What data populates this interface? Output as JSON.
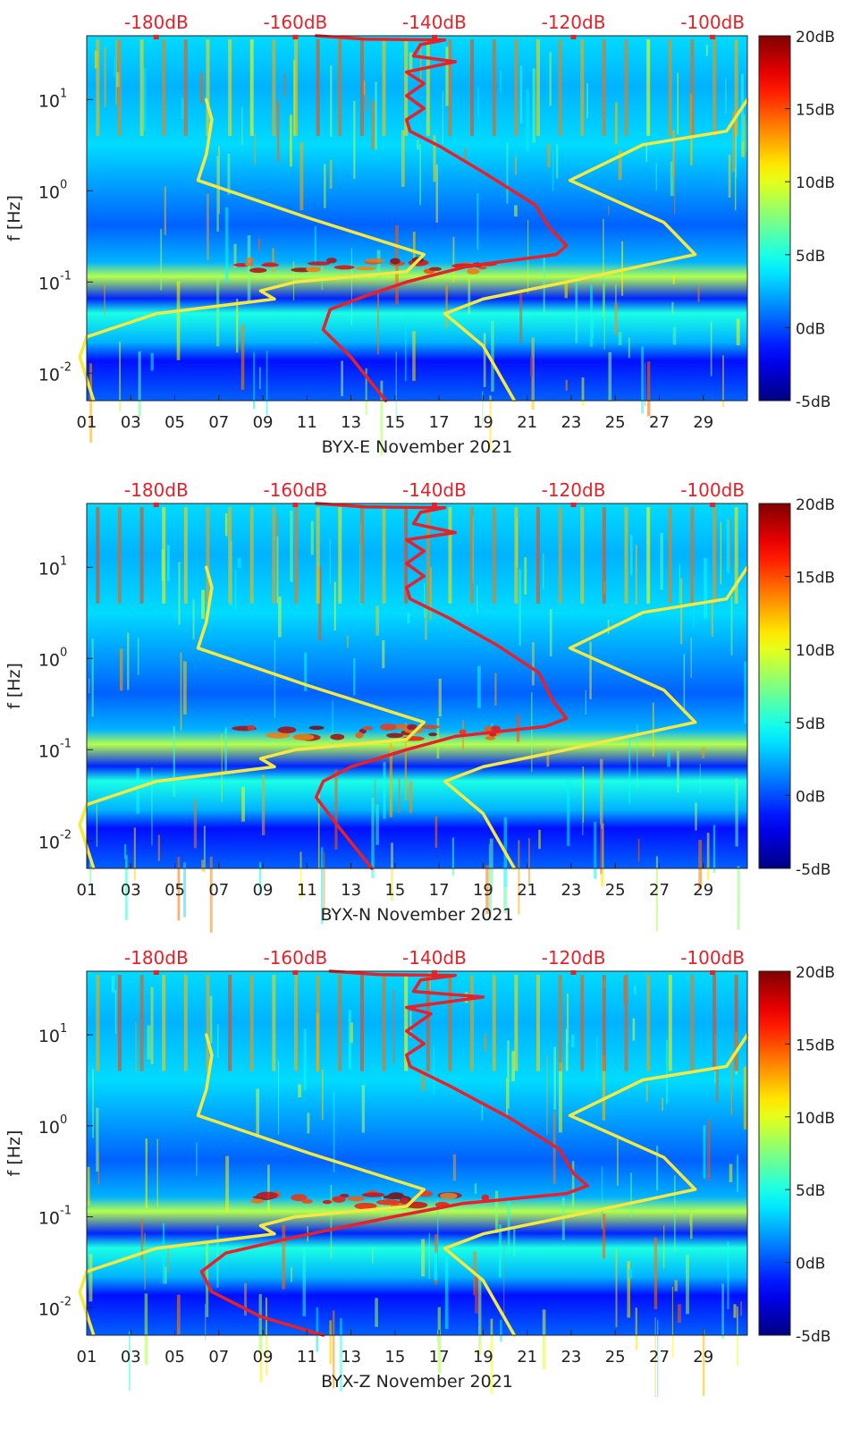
{
  "chart_data": [
    {
      "type": "heatmap",
      "station": "BYX-E",
      "xlabel": "BYX-E November 2021",
      "ylabel": "f [Hz]",
      "x_ticks": [
        "01",
        "03",
        "05",
        "07",
        "09",
        "11",
        "13",
        "15",
        "17",
        "19",
        "21",
        "23",
        "25",
        "27",
        "29"
      ],
      "xlim_days": [
        1,
        31
      ],
      "y_scale": "log",
      "ylim_hz": [
        0.005,
        50
      ],
      "y_ticks": [
        {
          "value": 0.01,
          "label": "10",
          "exp": "-2"
        },
        {
          "value": 0.1,
          "label": "10",
          "exp": "-1"
        },
        {
          "value": 1,
          "label": "10",
          "exp": "0"
        },
        {
          "value": 10,
          "label": "10",
          "exp": "1"
        }
      ],
      "colorbar": {
        "ticks": [
          "20dB",
          "15dB",
          "10dB",
          "5dB",
          "0dB",
          "-5dB"
        ],
        "range_db": [
          -5,
          20
        ],
        "colormap": "jet"
      },
      "top_axis": {
        "ticks": [
          "-180dB",
          "-160dB",
          "-140dB",
          "-120dB",
          "-100dB"
        ],
        "range_db": [
          -190,
          -95
        ],
        "color": "#e8202a"
      },
      "grid": false,
      "series": [
        {
          "color": "#f4e842",
          "points": [
            {
              "db": -172.8,
              "hz": 10
            },
            {
              "db": -172.0,
              "hz": 6.0
            },
            {
              "db": -172.8,
              "hz": 2.5
            },
            {
              "db": -174.0,
              "hz": 1.3
            },
            {
              "db": -158.0,
              "hz": 0.5
            },
            {
              "db": -141.5,
              "hz": 0.2
            },
            {
              "db": -144.0,
              "hz": 0.13
            },
            {
              "db": -160.0,
              "hz": 0.1
            },
            {
              "db": -165.0,
              "hz": 0.08
            },
            {
              "db": -163.0,
              "hz": 0.065
            },
            {
              "db": -180.0,
              "hz": 0.045
            },
            {
              "db": -190.0,
              "hz": 0.025
            },
            {
              "db": -191.0,
              "hz": 0.015
            },
            {
              "db": -189.0,
              "hz": 0.005
            }
          ]
        },
        {
          "color": "#f4e842",
          "points": [
            {
              "db": -95.0,
              "hz": 10
            },
            {
              "db": -98.0,
              "hz": 4.5
            },
            {
              "db": -110.0,
              "hz": 3.2
            },
            {
              "db": -120.5,
              "hz": 1.3
            },
            {
              "db": -107.0,
              "hz": 0.45
            },
            {
              "db": -102.5,
              "hz": 0.2
            },
            {
              "db": -121.0,
              "hz": 0.1
            },
            {
              "db": -133.0,
              "hz": 0.065
            },
            {
              "db": -138.5,
              "hz": 0.045
            },
            {
              "db": -133.0,
              "hz": 0.02
            },
            {
              "db": -128.5,
              "hz": 0.005
            }
          ]
        },
        {
          "color": "#e8202a",
          "points": [
            {
              "db": -157.0,
              "hz": 50
            },
            {
              "db": -150.0,
              "hz": 46
            },
            {
              "db": -138.5,
              "hz": 45
            },
            {
              "db": -142.0,
              "hz": 40
            },
            {
              "db": -143.0,
              "hz": 30
            },
            {
              "db": -137.0,
              "hz": 26
            },
            {
              "db": -144.0,
              "hz": 20
            },
            {
              "db": -141.5,
              "hz": 15
            },
            {
              "db": -144.0,
              "hz": 11
            },
            {
              "db": -141.5,
              "hz": 8
            },
            {
              "db": -144.0,
              "hz": 6
            },
            {
              "db": -143.5,
              "hz": 4.5
            },
            {
              "db": -139.0,
              "hz": 3.0
            },
            {
              "db": -133.0,
              "hz": 1.6
            },
            {
              "db": -125.5,
              "hz": 0.7
            },
            {
              "db": -123.5,
              "hz": 0.4
            },
            {
              "db": -121.0,
              "hz": 0.25
            },
            {
              "db": -122.5,
              "hz": 0.2
            },
            {
              "db": -135.0,
              "hz": 0.15
            },
            {
              "db": -144.0,
              "hz": 0.1
            },
            {
              "db": -150.0,
              "hz": 0.07
            },
            {
              "db": -155.0,
              "hz": 0.05
            },
            {
              "db": -156.0,
              "hz": 0.03
            },
            {
              "db": -152.0,
              "hz": 0.015
            },
            {
              "db": -147.0,
              "hz": 0.005
            }
          ]
        }
      ]
    },
    {
      "type": "heatmap",
      "station": "BYX-N",
      "xlabel": "BYX-N November 2021",
      "ylabel": "f [Hz]",
      "x_ticks": [
        "01",
        "03",
        "05",
        "07",
        "09",
        "11",
        "13",
        "15",
        "17",
        "19",
        "21",
        "23",
        "25",
        "27",
        "29"
      ],
      "xlim_days": [
        1,
        31
      ],
      "y_scale": "log",
      "ylim_hz": [
        0.005,
        50
      ],
      "y_ticks": [
        {
          "value": 0.01,
          "label": "10",
          "exp": "-2"
        },
        {
          "value": 0.1,
          "label": "10",
          "exp": "-1"
        },
        {
          "value": 1,
          "label": "10",
          "exp": "0"
        },
        {
          "value": 10,
          "label": "10",
          "exp": "1"
        }
      ],
      "colorbar": {
        "ticks": [
          "20dB",
          "15dB",
          "10dB",
          "5dB",
          "0dB",
          "-5dB"
        ],
        "range_db": [
          -5,
          20
        ],
        "colormap": "jet"
      },
      "top_axis": {
        "ticks": [
          "-180dB",
          "-160dB",
          "-140dB",
          "-120dB",
          "-100dB"
        ],
        "range_db": [
          -190,
          -95
        ],
        "color": "#e8202a"
      },
      "grid": false,
      "series": [
        {
          "color": "#f4e842",
          "points": [
            {
              "db": -172.8,
              "hz": 10
            },
            {
              "db": -172.0,
              "hz": 6.0
            },
            {
              "db": -172.8,
              "hz": 2.5
            },
            {
              "db": -174.0,
              "hz": 1.3
            },
            {
              "db": -158.0,
              "hz": 0.5
            },
            {
              "db": -141.5,
              "hz": 0.2
            },
            {
              "db": -144.0,
              "hz": 0.13
            },
            {
              "db": -160.0,
              "hz": 0.1
            },
            {
              "db": -165.0,
              "hz": 0.08
            },
            {
              "db": -163.0,
              "hz": 0.065
            },
            {
              "db": -180.0,
              "hz": 0.045
            },
            {
              "db": -190.0,
              "hz": 0.025
            },
            {
              "db": -191.0,
              "hz": 0.015
            },
            {
              "db": -189.0,
              "hz": 0.005
            }
          ]
        },
        {
          "color": "#f4e842",
          "points": [
            {
              "db": -95.0,
              "hz": 10
            },
            {
              "db": -98.0,
              "hz": 4.5
            },
            {
              "db": -110.0,
              "hz": 3.2
            },
            {
              "db": -120.5,
              "hz": 1.3
            },
            {
              "db": -107.0,
              "hz": 0.45
            },
            {
              "db": -102.5,
              "hz": 0.2
            },
            {
              "db": -121.0,
              "hz": 0.1
            },
            {
              "db": -133.0,
              "hz": 0.065
            },
            {
              "db": -138.5,
              "hz": 0.045
            },
            {
              "db": -133.0,
              "hz": 0.02
            },
            {
              "db": -128.5,
              "hz": 0.005
            }
          ]
        },
        {
          "color": "#e8202a",
          "points": [
            {
              "db": -157.0,
              "hz": 50
            },
            {
              "db": -150.0,
              "hz": 46
            },
            {
              "db": -138.5,
              "hz": 45
            },
            {
              "db": -142.0,
              "hz": 40
            },
            {
              "db": -143.0,
              "hz": 30
            },
            {
              "db": -137.0,
              "hz": 24
            },
            {
              "db": -144.0,
              "hz": 20
            },
            {
              "db": -141.5,
              "hz": 15
            },
            {
              "db": -144.0,
              "hz": 11
            },
            {
              "db": -141.5,
              "hz": 8
            },
            {
              "db": -144.0,
              "hz": 6
            },
            {
              "db": -143.5,
              "hz": 4.5
            },
            {
              "db": -138.0,
              "hz": 2.8
            },
            {
              "db": -131.0,
              "hz": 1.4
            },
            {
              "db": -125.0,
              "hz": 0.7
            },
            {
              "db": -123.0,
              "hz": 0.35
            },
            {
              "db": -121.0,
              "hz": 0.22
            },
            {
              "db": -124.0,
              "hz": 0.18
            },
            {
              "db": -137.0,
              "hz": 0.14
            },
            {
              "db": -144.0,
              "hz": 0.1
            },
            {
              "db": -152.0,
              "hz": 0.065
            },
            {
              "db": -156.0,
              "hz": 0.045
            },
            {
              "db": -157.0,
              "hz": 0.03
            },
            {
              "db": -154.0,
              "hz": 0.015
            },
            {
              "db": -149.0,
              "hz": 0.005
            }
          ]
        }
      ]
    },
    {
      "type": "heatmap",
      "station": "BYX-Z",
      "xlabel": "BYX-Z November 2021",
      "ylabel": "f [Hz]",
      "x_ticks": [
        "01",
        "03",
        "05",
        "07",
        "09",
        "11",
        "13",
        "15",
        "17",
        "19",
        "21",
        "23",
        "25",
        "27",
        "29"
      ],
      "xlim_days": [
        1,
        31
      ],
      "y_scale": "log",
      "ylim_hz": [
        0.005,
        50
      ],
      "y_ticks": [
        {
          "value": 0.01,
          "label": "10",
          "exp": "-2"
        },
        {
          "value": 0.1,
          "label": "10",
          "exp": "-1"
        },
        {
          "value": 1,
          "label": "10",
          "exp": "0"
        },
        {
          "value": 10,
          "label": "10",
          "exp": "1"
        }
      ],
      "colorbar": {
        "ticks": [
          "20dB",
          "15dB",
          "10dB",
          "5dB",
          "0dB",
          "-5dB"
        ],
        "range_db": [
          -5,
          20
        ],
        "colormap": "jet"
      },
      "top_axis": {
        "ticks": [
          "-180dB",
          "-160dB",
          "-140dB",
          "-120dB",
          "-100dB"
        ],
        "range_db": [
          -190,
          -95
        ],
        "color": "#e8202a"
      },
      "grid": false,
      "series": [
        {
          "color": "#f4e842",
          "points": [
            {
              "db": -172.8,
              "hz": 10
            },
            {
              "db": -172.0,
              "hz": 6.0
            },
            {
              "db": -172.8,
              "hz": 2.5
            },
            {
              "db": -174.0,
              "hz": 1.3
            },
            {
              "db": -158.0,
              "hz": 0.5
            },
            {
              "db": -141.5,
              "hz": 0.2
            },
            {
              "db": -144.0,
              "hz": 0.13
            },
            {
              "db": -160.0,
              "hz": 0.1
            },
            {
              "db": -165.0,
              "hz": 0.08
            },
            {
              "db": -163.0,
              "hz": 0.065
            },
            {
              "db": -180.0,
              "hz": 0.045
            },
            {
              "db": -190.0,
              "hz": 0.025
            },
            {
              "db": -191.0,
              "hz": 0.015
            },
            {
              "db": -189.0,
              "hz": 0.005
            }
          ]
        },
        {
          "color": "#f4e842",
          "points": [
            {
              "db": -95.0,
              "hz": 10
            },
            {
              "db": -98.0,
              "hz": 4.5
            },
            {
              "db": -110.0,
              "hz": 3.2
            },
            {
              "db": -120.5,
              "hz": 1.3
            },
            {
              "db": -107.0,
              "hz": 0.45
            },
            {
              "db": -102.5,
              "hz": 0.2
            },
            {
              "db": -121.0,
              "hz": 0.1
            },
            {
              "db": -133.0,
              "hz": 0.065
            },
            {
              "db": -138.5,
              "hz": 0.045
            },
            {
              "db": -133.0,
              "hz": 0.02
            },
            {
              "db": -128.5,
              "hz": 0.005
            }
          ]
        },
        {
          "color": "#e8202a",
          "points": [
            {
              "db": -155.0,
              "hz": 50
            },
            {
              "db": -148.0,
              "hz": 46
            },
            {
              "db": -137.0,
              "hz": 45
            },
            {
              "db": -142.0,
              "hz": 40
            },
            {
              "db": -143.0,
              "hz": 30
            },
            {
              "db": -133.0,
              "hz": 26
            },
            {
              "db": -144.0,
              "hz": 20
            },
            {
              "db": -140.5,
              "hz": 17
            },
            {
              "db": -144.0,
              "hz": 11
            },
            {
              "db": -141.5,
              "hz": 8
            },
            {
              "db": -144.0,
              "hz": 6
            },
            {
              "db": -143.5,
              "hz": 4.5
            },
            {
              "db": -138.0,
              "hz": 2.8
            },
            {
              "db": -129.0,
              "hz": 1.2
            },
            {
              "db": -122.0,
              "hz": 0.55
            },
            {
              "db": -120.0,
              "hz": 0.3
            },
            {
              "db": -118.0,
              "hz": 0.22
            },
            {
              "db": -121.0,
              "hz": 0.18
            },
            {
              "db": -136.0,
              "hz": 0.14
            },
            {
              "db": -146.0,
              "hz": 0.1
            },
            {
              "db": -160.0,
              "hz": 0.06
            },
            {
              "db": -170.0,
              "hz": 0.04
            },
            {
              "db": -173.5,
              "hz": 0.025
            },
            {
              "db": -172.0,
              "hz": 0.015
            },
            {
              "db": -165.0,
              "hz": 0.008
            },
            {
              "db": -156.0,
              "hz": 0.005
            }
          ]
        }
      ]
    }
  ]
}
